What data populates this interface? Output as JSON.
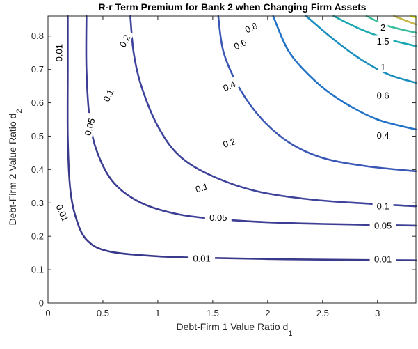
{
  "chart_data": {
    "type": "contour",
    "title": "R-r Term Premium for Bank 2 when Changing Firm Assets",
    "xlabel": "Debt-Firm 1 Value Ratio d",
    "xlabel_sub": "1",
    "ylabel": "Debt-Firm 2 Value Ratio d",
    "ylabel_sub": "2",
    "xlim": [
      0,
      3.35
    ],
    "ylim": [
      0,
      0.86
    ],
    "xticks": [
      "0",
      "0.5",
      "1",
      "1.5",
      "2",
      "2.5",
      "3"
    ],
    "xtick_values": [
      0,
      0.5,
      1,
      1.5,
      2,
      2.5,
      3
    ],
    "yticks": [
      "0",
      "0.1",
      "0.2",
      "0.3",
      "0.4",
      "0.5",
      "0.6",
      "0.7",
      "0.8"
    ],
    "ytick_values": [
      0,
      0.1,
      0.2,
      0.3,
      0.4,
      0.5,
      0.6,
      0.7,
      0.8
    ],
    "levels": [
      {
        "level": "0.01",
        "color": "#3a3a8c",
        "points": [
          [
            0.18,
            0.86
          ],
          [
            0.18,
            0.7
          ],
          [
            0.18,
            0.5
          ],
          [
            0.2,
            0.35
          ],
          [
            0.25,
            0.26
          ],
          [
            0.35,
            0.19
          ],
          [
            0.55,
            0.155
          ],
          [
            1.0,
            0.14
          ],
          [
            1.5,
            0.135
          ],
          [
            2.0,
            0.132
          ],
          [
            2.5,
            0.13
          ],
          [
            3.35,
            0.128
          ]
        ],
        "labels": [
          [
            0.1,
            0.75,
            -90
          ],
          [
            0.13,
            0.27,
            66
          ],
          [
            1.4,
            0.134,
            0
          ],
          [
            3.05,
            0.131,
            0
          ]
        ]
      },
      {
        "level": "0.05",
        "color": "#3c3d93",
        "points": [
          [
            0.35,
            0.86
          ],
          [
            0.35,
            0.7
          ],
          [
            0.38,
            0.55
          ],
          [
            0.45,
            0.45
          ],
          [
            0.6,
            0.36
          ],
          [
            0.85,
            0.3
          ],
          [
            1.2,
            0.265
          ],
          [
            1.6,
            0.25
          ],
          [
            2.0,
            0.242
          ],
          [
            2.5,
            0.237
          ],
          [
            3.35,
            0.232
          ]
        ],
        "labels": [
          [
            0.38,
            0.528,
            -75
          ],
          [
            1.55,
            0.256,
            0
          ],
          [
            3.05,
            0.232,
            0
          ]
        ]
      },
      {
        "level": "0.1",
        "color": "#3d429b",
        "points": [
          [
            0.75,
            0.86
          ],
          [
            0.78,
            0.75
          ],
          [
            0.85,
            0.65
          ],
          [
            1.0,
            0.53
          ],
          [
            1.2,
            0.44
          ],
          [
            1.5,
            0.38
          ],
          [
            1.9,
            0.335
          ],
          [
            2.4,
            0.31
          ],
          [
            2.9,
            0.298
          ],
          [
            3.35,
            0.29
          ]
        ],
        "labels": [
          [
            0.55,
            0.622,
            -65
          ],
          [
            1.4,
            0.345,
            -16
          ],
          [
            3.05,
            0.29,
            0
          ]
        ]
      },
      {
        "level": "0.2",
        "color": "#3a57b5",
        "points": [
          [
            1.55,
            0.86
          ],
          [
            1.6,
            0.75
          ],
          [
            1.75,
            0.64
          ],
          [
            1.95,
            0.55
          ],
          [
            2.2,
            0.48
          ],
          [
            2.5,
            0.435
          ],
          [
            2.9,
            0.41
          ],
          [
            3.35,
            0.395
          ]
        ],
        "labels": [
          [
            0.7,
            0.785,
            -62
          ],
          [
            1.65,
            0.48,
            -18
          ]
        ]
      },
      {
        "level": "0.4",
        "color": "#2272c8",
        "points": [
          [
            2.05,
            0.86
          ],
          [
            2.2,
            0.75
          ],
          [
            2.45,
            0.66
          ],
          [
            2.7,
            0.6
          ],
          [
            3.0,
            0.55
          ],
          [
            3.35,
            0.52
          ]
        ],
        "labels": [
          [
            1.65,
            0.65,
            -25
          ],
          [
            3.05,
            0.502,
            0
          ]
        ]
      },
      {
        "level": "0.6",
        "color": "#1a8ebd",
        "points": [
          [
            2.35,
            0.86
          ],
          [
            2.6,
            0.79
          ],
          [
            2.85,
            0.73
          ],
          [
            3.1,
            0.685
          ],
          [
            3.35,
            0.66
          ]
        ],
        "labels": [
          [
            1.75,
            0.775,
            -25
          ],
          [
            3.05,
            0.622,
            0
          ]
        ]
      },
      {
        "level": "0.8",
        "color": "#18a7b0",
        "points": [
          [
            2.6,
            0.86
          ],
          [
            2.85,
            0.82
          ],
          [
            3.1,
            0.79
          ],
          [
            3.35,
            0.77
          ]
        ],
        "labels": [
          [
            1.85,
            0.825,
            -25
          ]
        ]
      },
      {
        "level": "1",
        "color": "#3bbd9e",
        "points": [
          [
            2.9,
            0.86
          ],
          [
            3.1,
            0.83
          ],
          [
            3.35,
            0.81
          ]
        ],
        "labels": [
          [
            3.05,
            0.707,
            0
          ]
        ]
      },
      {
        "level": "1.5",
        "color": "#c8b74a",
        "points": [
          [
            3.15,
            0.86
          ],
          [
            3.35,
            0.835
          ]
        ],
        "labels": [
          [
            3.05,
            0.784,
            0
          ]
        ]
      },
      {
        "level": "2",
        "color": "#f9fb0e",
        "points": [
          [
            3.3,
            0.86
          ],
          [
            3.35,
            0.855
          ]
        ],
        "labels": [
          [
            3.05,
            0.826,
            0
          ]
        ]
      }
    ],
    "grid": false,
    "colormap": "parula"
  }
}
